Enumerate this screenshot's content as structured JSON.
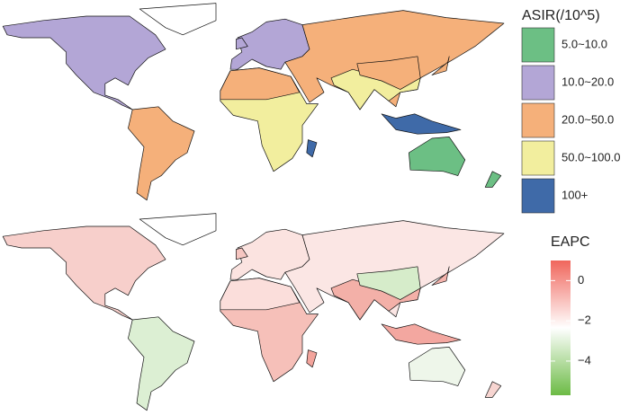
{
  "legend_asir": {
    "title": "ASIR(/10^5)",
    "items": [
      {
        "label": "5.0~10.0",
        "color": "#6cbf84"
      },
      {
        "label": "10.0~20.0",
        "color": "#b3a6d6"
      },
      {
        "label": "20.0~50.0",
        "color": "#f5b07a"
      },
      {
        "label": "50.0~100.0",
        "color": "#f2ee9e"
      },
      {
        "label": "100+",
        "color": "#3f6aa8"
      }
    ]
  },
  "legend_eapc": {
    "title": "EAPC",
    "colors": [
      "#6cbb45",
      "#ffffff",
      "#f0665c"
    ],
    "lim": [
      -5.7,
      1.0
    ],
    "ticks": [
      0,
      {
        "value": -2,
        "label": "−2"
      },
      {
        "value": -4,
        "label": "−4"
      }
    ]
  }
}
